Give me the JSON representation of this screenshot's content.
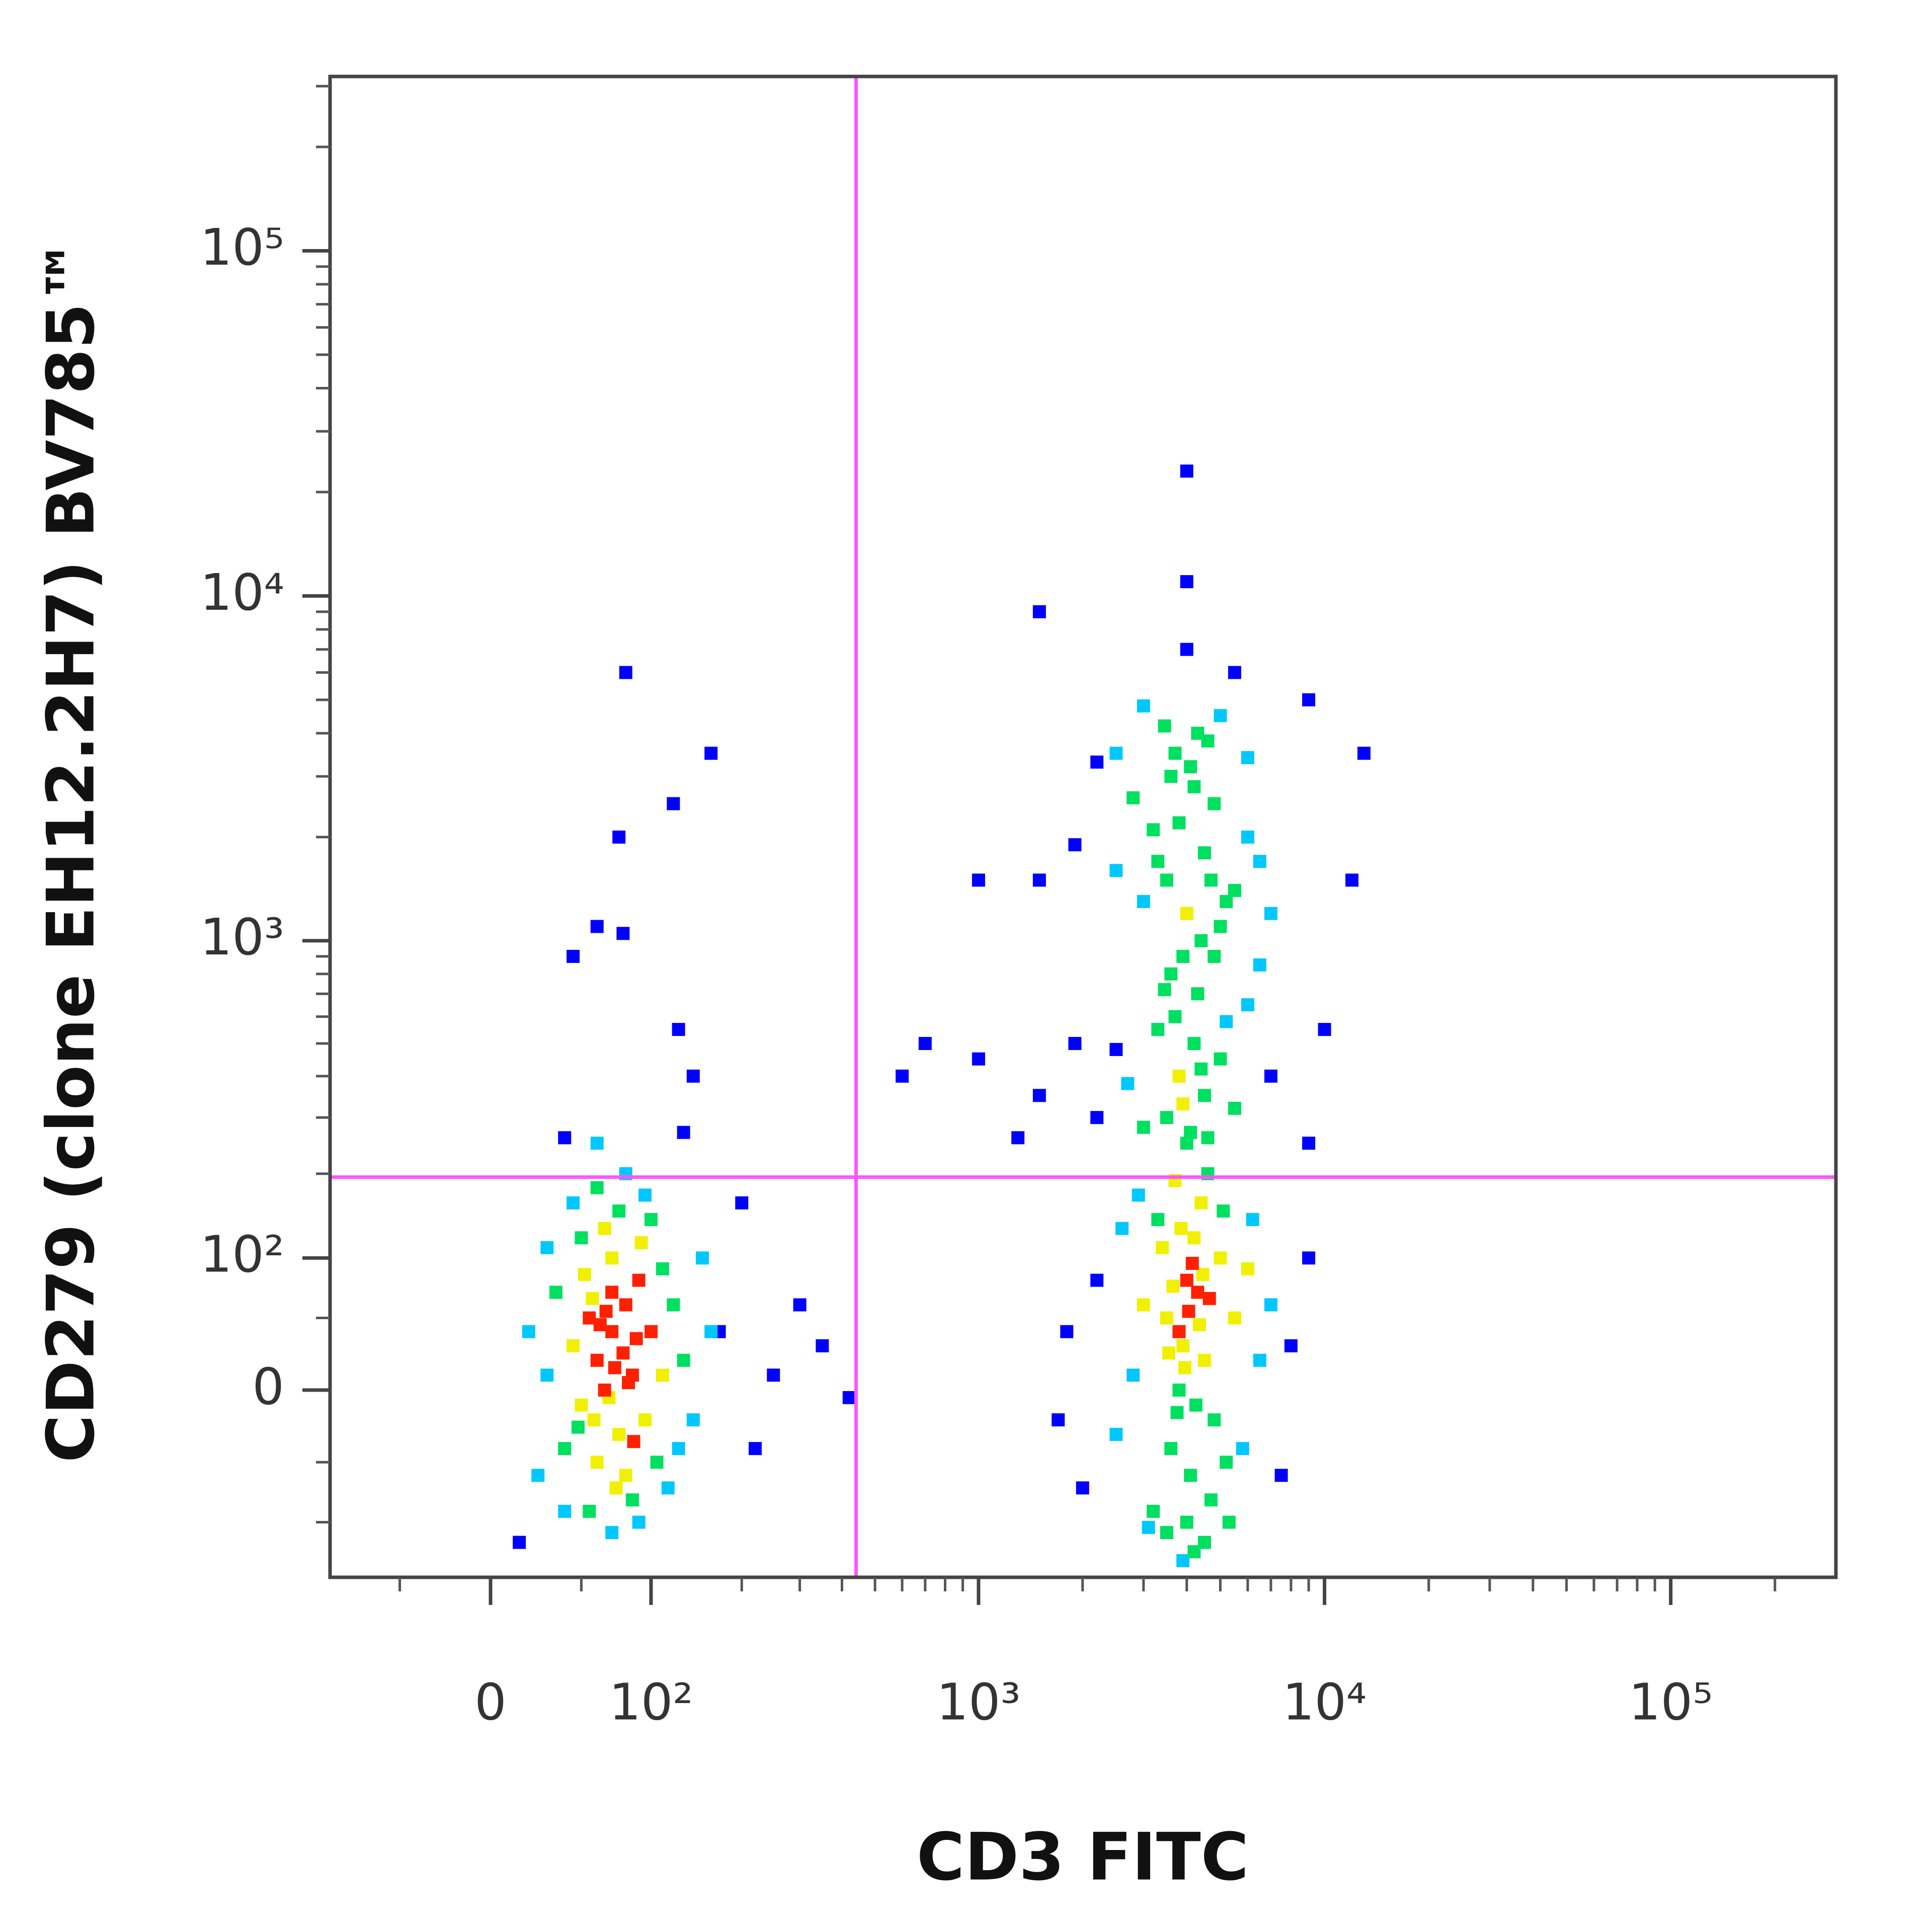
{
  "chart_data": {
    "type": "scatter",
    "x_label": "CD3 FITC",
    "y_label": "CD279 (clone EH12.2H7) BV785™",
    "x_scale": "biexponential",
    "y_scale": "biexponential",
    "xlim": [
      -100,
      300000
    ],
    "ylim": [
      -160,
      320000
    ],
    "xticks": [
      0,
      {
        "value": 100,
        "label": "10²"
      },
      {
        "value": 1000,
        "label": "10³"
      },
      {
        "value": 10000,
        "label": "10⁴"
      },
      {
        "value": 100000,
        "label": "10⁵"
      }
    ],
    "yticks": [
      0,
      {
        "value": 100,
        "label": "10²"
      },
      {
        "value": 1000,
        "label": "10³"
      },
      {
        "value": 10000,
        "label": "10⁴"
      },
      {
        "value": 100000,
        "label": "10⁵"
      }
    ],
    "xminor": [
      -50,
      50,
      200,
      300,
      400,
      500,
      600,
      700,
      800,
      900,
      2000,
      3000,
      4000,
      5000,
      6000,
      7000,
      8000,
      9000,
      20000,
      30000,
      40000,
      50000,
      60000,
      70000,
      80000,
      90000,
      200000
    ],
    "yminor": [
      -100,
      -50,
      50,
      200,
      300,
      400,
      500,
      600,
      700,
      800,
      900,
      2000,
      3000,
      4000,
      5000,
      6000,
      7000,
      8000,
      9000,
      20000,
      30000,
      40000,
      50000,
      60000,
      70000,
      80000,
      90000,
      200000,
      300000
    ],
    "gate_x": 440,
    "gate_y": 195,
    "gate_color": "#ff55ff",
    "density_colors": [
      "#0000ff",
      "#00c8ff",
      "#00e060",
      "#f0f000",
      "#ff2000"
    ],
    "x": [
      60,
      70,
      50,
      80,
      65,
      75,
      55,
      85,
      90,
      45,
      70,
      60,
      80,
      95,
      40,
      100,
      110,
      30,
      65,
      75,
      50,
      85,
      55,
      90,
      70,
      35,
      120,
      130,
      140,
      150,
      25,
      20,
      105,
      115,
      60,
      80,
      95,
      45,
      100,
      70,
      62,
      78,
      58,
      88,
      68,
      52,
      73,
      92,
      40,
      110,
      160,
      15,
      30,
      125,
      82,
      66,
      72,
      57,
      48,
      86,
      80,
      160,
      120,
      75,
      60,
      45,
      78,
      125,
      140,
      40,
      60,
      130,
      200,
      170,
      220,
      250,
      300,
      420,
      350,
      3500,
      4000,
      4500,
      3800,
      4200,
      3000,
      5000,
      4800,
      3600,
      4400,
      3900,
      4100,
      3300,
      5500,
      6000,
      2800,
      2500,
      3700,
      4600,
      4300,
      3400,
      5200,
      6500,
      2200,
      2000,
      7000,
      4700,
      3200,
      3800,
      4050,
      4150,
      3950,
      3650,
      4350,
      4250,
      3850,
      4450,
      3550,
      4650,
      3750,
      5100,
      2900,
      6200,
      5800,
      2600,
      7500,
      8000,
      1800,
      1700,
      9000,
      4000,
      3500,
      4500,
      4200,
      3900,
      5300,
      3100,
      4000,
      3500,
      4500,
      3800,
      4200,
      3000,
      5000,
      3700,
      4300,
      3600,
      4800,
      3300,
      5500,
      6000,
      2700,
      2500,
      4100,
      3900,
      4400,
      3450,
      4600,
      5200,
      2200,
      6500,
      1900,
      1500,
      1300,
      1000,
      700,
      600,
      7000,
      9000,
      10000,
      4000,
      3500,
      4500,
      3800,
      4200,
      3000,
      5000,
      3700,
      4300,
      3600,
      4800,
      3300,
      5500,
      6000,
      2800,
      2500,
      4100,
      3900,
      4400,
      3450,
      4600,
      5200,
      2200,
      6500,
      1900,
      1500,
      1000,
      3000,
      5000,
      6000,
      7000,
      13000,
      12000,
      1500,
      4000,
      4000,
      4000,
      5500,
      9000,
      2500,
      3200,
      4700
    ],
    "values": [
      20,
      40,
      -10,
      60,
      0,
      -30,
      50,
      10,
      80,
      30,
      100,
      -50,
      -60,
      -20,
      -40,
      40,
      90,
      10,
      130,
      150,
      120,
      -80,
      -90,
      -100,
      -110,
      70,
      60,
      20,
      -20,
      100,
      -60,
      40,
      -50,
      -70,
      180,
      200,
      170,
      160,
      140,
      70,
      45,
      25,
      -20,
      35,
      -5,
      85,
      -70,
      115,
      -90,
      10,
      40,
      -120,
      110,
      -40,
      5,
      55,
      15,
      65,
      -25,
      -35,
      6000,
      3500,
      2500,
      2000,
      1100,
      900,
      1050,
      550,
      400,
      260,
      250,
      270,
      160,
      40,
      -40,
      10,
      60,
      -5,
      30,
      50,
      80,
      20,
      0,
      120,
      60,
      100,
      -20,
      -40,
      160,
      30,
      -60,
      140,
      50,
      90,
      10,
      -30,
      190,
      200,
      70,
      110,
      -50,
      20,
      80,
      -70,
      60,
      -80,
      -90,
      40,
      55,
      95,
      15,
      75,
      45,
      -10,
      130,
      85,
      25,
      65,
      -15,
      150,
      170,
      140,
      -40,
      130,
      -60,
      30,
      40,
      -20,
      100,
      -100,
      -110,
      -120,
      -130,
      -140,
      -100,
      -105,
      250,
      300,
      350,
      400,
      500,
      280,
      450,
      600,
      700,
      800,
      900,
      550,
      320,
      650,
      380,
      480,
      270,
      330,
      420,
      720,
      260,
      580,
      300,
      850,
      500,
      350,
      260,
      450,
      500,
      400,
      400,
      250,
      550,
      1200,
      1500,
      1800,
      2200,
      2800,
      1300,
      1100,
      3500,
      4000,
      3000,
      2500,
      1700,
      1400,
      2000,
      2600,
      1600,
      3200,
      900,
      1000,
      4200,
      3800,
      1300,
      3300,
      1700,
      1900,
      1500,
      1500,
      4800,
      4500,
      3400,
      1200,
      3500,
      1500,
      9000,
      23000,
      11000,
      7000,
      6000,
      5000,
      3500,
      2100,
      1500
    ]
  }
}
